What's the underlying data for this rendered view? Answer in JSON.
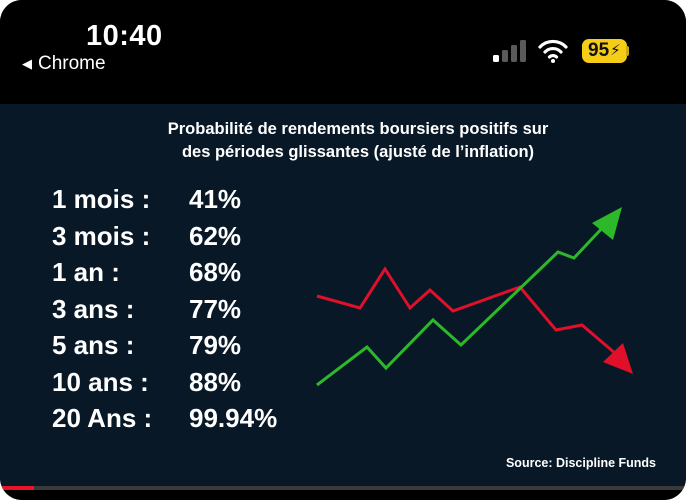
{
  "status_bar": {
    "time": "10:40",
    "back_app": "Chrome",
    "battery_level": "95",
    "battery_color": "#f5cc16",
    "signal_bars_active": 1,
    "signal_bars_total": 4
  },
  "post": {
    "title_line1": "Probabilité de rendements boursiers positifs sur",
    "title_line2": "des périodes glissantes (ajusté de l’inflation)",
    "rows": [
      {
        "label": "1 mois :",
        "value": "41%"
      },
      {
        "label": "3 mois :",
        "value": "62%"
      },
      {
        "label": "1 an :",
        "value": "68%"
      },
      {
        "label": "3 ans :",
        "value": "77%"
      },
      {
        "label": "5 ans :",
        "value": "79%"
      },
      {
        "label": "10 ans :",
        "value": "88%"
      },
      {
        "label": "20 Ans :",
        "value": "99.94%"
      }
    ],
    "source": "Source: Discipline Funds",
    "background_color": "#081827",
    "arrow_up_color": "#2db82a",
    "arrow_down_color": "#e0102a",
    "arrow_up_icon": "green-trend-up-arrow-icon",
    "arrow_down_icon": "red-trend-down-arrow-icon"
  },
  "video": {
    "progress_fraction": 0.05
  }
}
